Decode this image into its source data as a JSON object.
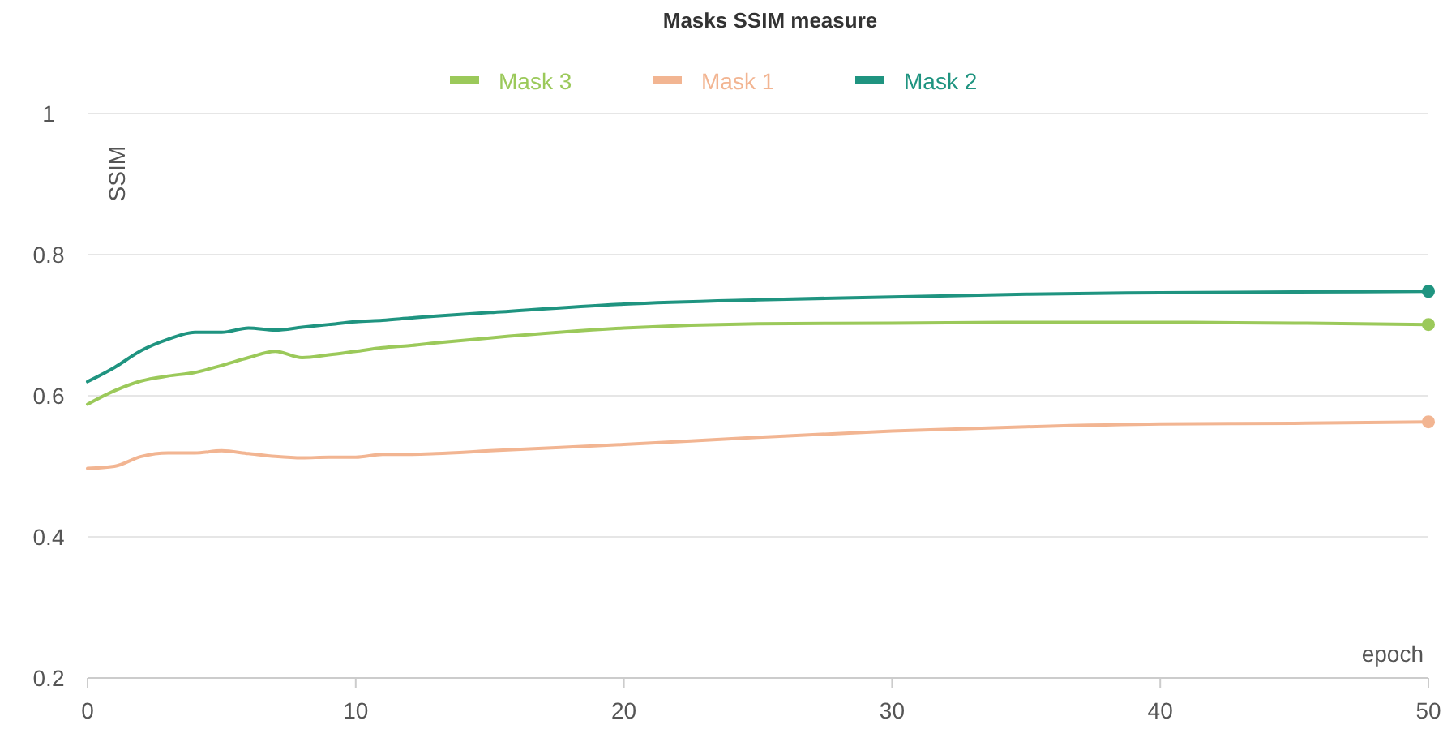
{
  "chart_data": {
    "type": "line",
    "title": "Masks SSIM measure",
    "xlabel": "epoch",
    "ylabel": "SSIM",
    "x": [
      0,
      1,
      2,
      3,
      4,
      5,
      6,
      7,
      8,
      9,
      10,
      11,
      12,
      13,
      15,
      20,
      25,
      30,
      35,
      40,
      45,
      50
    ],
    "series": [
      {
        "name": "Mask 3",
        "color": "#9bc95a",
        "values": [
          0.588,
          0.607,
          0.621,
          0.628,
          0.633,
          0.643,
          0.654,
          0.663,
          0.654,
          0.658,
          0.663,
          0.668,
          0.671,
          0.675,
          0.682,
          0.696,
          0.702,
          0.703,
          0.704,
          0.704,
          0.703,
          0.701
        ]
      },
      {
        "name": "Mask 1",
        "color": "#f2b592",
        "values": [
          0.497,
          0.5,
          0.514,
          0.519,
          0.519,
          0.522,
          0.518,
          0.514,
          0.512,
          0.513,
          0.513,
          0.517,
          0.517,
          0.518,
          0.522,
          0.531,
          0.541,
          0.55,
          0.556,
          0.56,
          0.561,
          0.563
        ]
      },
      {
        "name": "Mask 2",
        "color": "#1f9480",
        "values": [
          0.62,
          0.64,
          0.664,
          0.68,
          0.69,
          0.69,
          0.696,
          0.693,
          0.697,
          0.701,
          0.705,
          0.707,
          0.71,
          0.713,
          0.718,
          0.73,
          0.736,
          0.74,
          0.744,
          0.746,
          0.747,
          0.748
        ]
      }
    ],
    "xlim": [
      0,
      50
    ],
    "xticks": [
      0,
      10,
      20,
      30,
      40,
      50
    ],
    "ylim": [
      0.2,
      1
    ],
    "yticks": [
      0.2,
      0.4,
      0.6,
      0.8,
      1
    ],
    "grid": "y",
    "legend": "top",
    "marker": "none",
    "line_style": "solid"
  }
}
